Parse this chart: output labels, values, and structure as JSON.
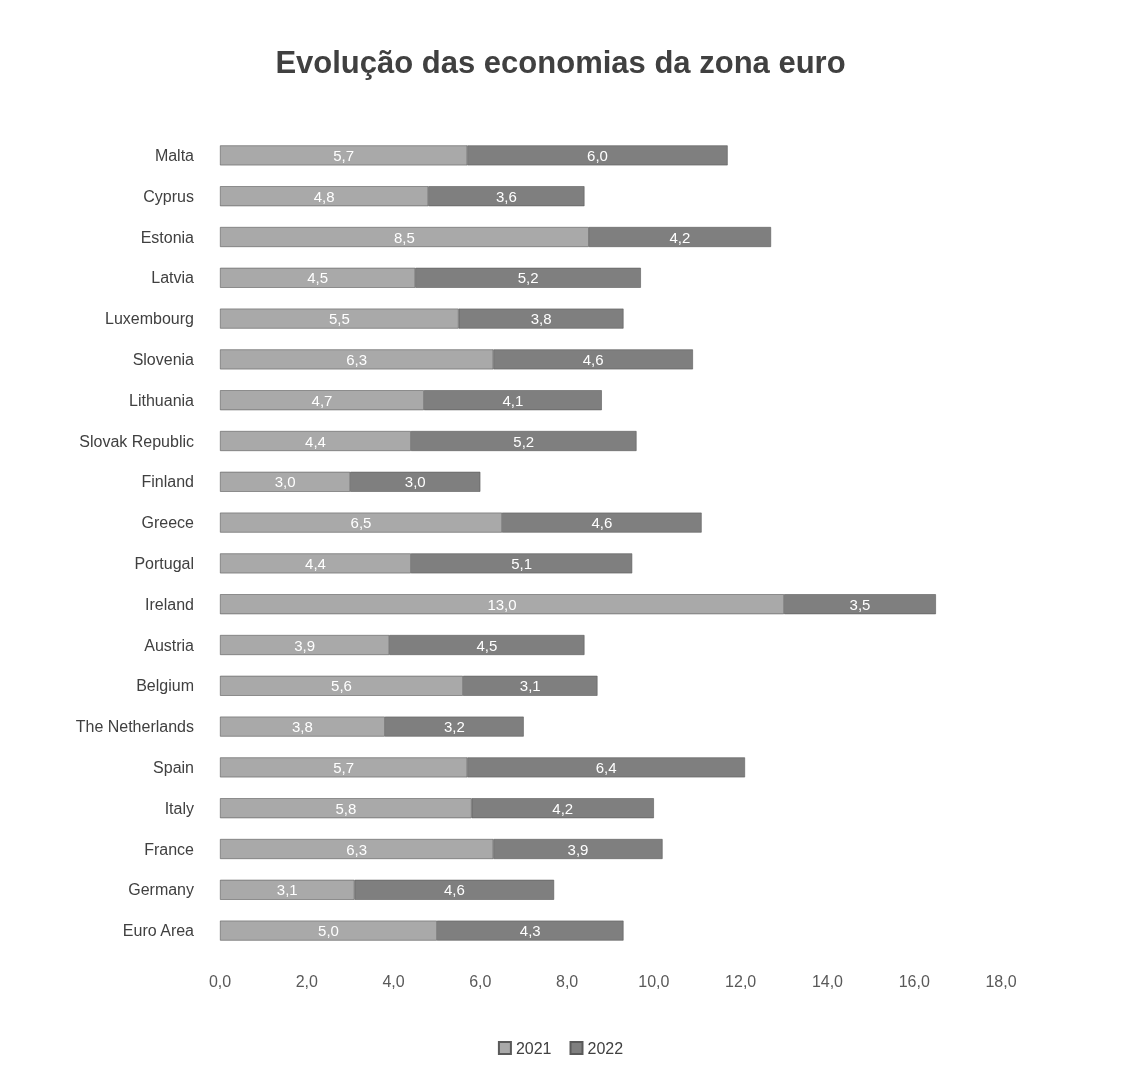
{
  "chart_data": {
    "type": "bar",
    "title": "Evolução das economias da zona euro",
    "orientation": "horizontal",
    "stacked": true,
    "categories": [
      "Malta",
      "Cyprus",
      "Estonia",
      "Latvia",
      "Luxembourg",
      "Slovenia",
      "Lithuania",
      "Slovak Republic",
      "Finland",
      "Greece",
      "Portugal",
      "Ireland",
      "Austria",
      "Belgium",
      "The Netherlands",
      "Spain",
      "Italy",
      "France",
      "Germany",
      "Euro Area"
    ],
    "series": [
      {
        "name": "2021",
        "color": "#a9a9a9",
        "values": [
          5.7,
          4.8,
          8.5,
          4.5,
          5.5,
          6.3,
          4.7,
          4.4,
          3.0,
          6.5,
          4.4,
          13.0,
          3.9,
          5.6,
          3.8,
          5.7,
          5.8,
          6.3,
          3.1,
          5.0
        ],
        "value_labels": [
          "5,7",
          "4,8",
          "8,5",
          "4,5",
          "5,5",
          "6,3",
          "4,7",
          "4,4",
          "3,0",
          "6,5",
          "4,4",
          "13,0",
          "3,9",
          "5,6",
          "3,8",
          "5,7",
          "5,8",
          "6,3",
          "3,1",
          "5,0"
        ]
      },
      {
        "name": "2022",
        "color": "#7f7f7f",
        "values": [
          6.0,
          3.6,
          4.2,
          5.2,
          3.8,
          4.6,
          4.1,
          5.2,
          3.0,
          4.6,
          5.1,
          3.5,
          4.5,
          3.1,
          3.2,
          6.4,
          4.2,
          3.9,
          4.6,
          4.3
        ],
        "value_labels": [
          "6,0",
          "3,6",
          "4,2",
          "5,2",
          "3,8",
          "4,6",
          "4,1",
          "5,2",
          "3,0",
          "4,6",
          "5,1",
          "3,5",
          "4,5",
          "3,1",
          "3,2",
          "6,4",
          "4,2",
          "3,9",
          "4,6",
          "4,3"
        ]
      }
    ],
    "xlim": [
      0,
      18
    ],
    "xticks": [
      {
        "value": 0,
        "label": "0,0"
      },
      {
        "value": 2,
        "label": "2,0"
      },
      {
        "value": 4,
        "label": "4,0"
      },
      {
        "value": 6,
        "label": "6,0"
      },
      {
        "value": 8,
        "label": "8,0"
      },
      {
        "value": 10,
        "label": "10,0"
      },
      {
        "value": 12,
        "label": "12,0"
      },
      {
        "value": 14,
        "label": "14,0"
      },
      {
        "value": 16,
        "label": "16,0"
      },
      {
        "value": 18,
        "label": "18,0"
      }
    ],
    "grid": false,
    "legend": "bottom"
  }
}
